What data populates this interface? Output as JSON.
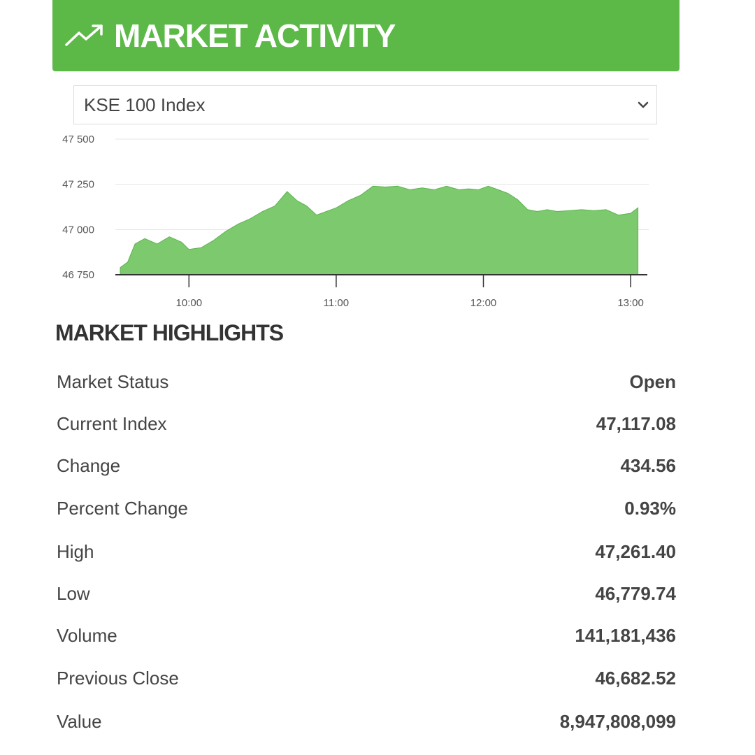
{
  "header": {
    "title": "MARKET ACTIVITY",
    "icon": "trending-up-icon",
    "accent": "#5cb947"
  },
  "index_selector": {
    "selected": "KSE 100 Index",
    "icon": "chevron-down-icon"
  },
  "chart_data": {
    "type": "area",
    "color": "#7cc96e",
    "y_ticks": [
      "47 500",
      "47 250",
      "47 000",
      "46 750"
    ],
    "x_ticks": [
      "10:00",
      "11:00",
      "12:00",
      "13:00"
    ],
    "ylim": [
      46750,
      47500
    ],
    "grid": true,
    "x": [
      "09:32",
      "09:35",
      "09:38",
      "09:42",
      "09:47",
      "09:52",
      "09:57",
      "10:00",
      "10:05",
      "10:10",
      "10:15",
      "10:20",
      "10:25",
      "10:30",
      "10:35",
      "10:40",
      "10:44",
      "10:48",
      "10:52",
      "10:56",
      "11:00",
      "11:05",
      "11:10",
      "11:15",
      "11:20",
      "11:25",
      "11:30",
      "11:35",
      "11:40",
      "11:45",
      "11:50",
      "11:54",
      "11:58",
      "12:02",
      "12:06",
      "12:10",
      "12:14",
      "12:18",
      "12:22",
      "12:26",
      "12:30",
      "12:35",
      "12:40",
      "12:45",
      "12:50",
      "12:55",
      "13:00",
      "13:03"
    ],
    "values": [
      46790,
      46820,
      46920,
      46950,
      46920,
      46960,
      46930,
      46890,
      46900,
      46940,
      46990,
      47030,
      47060,
      47100,
      47130,
      47210,
      47160,
      47130,
      47080,
      47100,
      47120,
      47160,
      47190,
      47240,
      47235,
      47240,
      47220,
      47230,
      47220,
      47240,
      47220,
      47225,
      47220,
      47240,
      47220,
      47200,
      47165,
      47110,
      47100,
      47110,
      47100,
      47105,
      47110,
      47105,
      47110,
      47080,
      47090,
      47120
    ]
  },
  "highlights": {
    "title": "MARKET HIGHLIGHTS",
    "rows": [
      {
        "label": "Market Status",
        "value": "Open"
      },
      {
        "label": "Current Index",
        "value": "47,117.08"
      },
      {
        "label": "Change",
        "value": "434.56"
      },
      {
        "label": "Percent Change",
        "value": "0.93%"
      },
      {
        "label": "High",
        "value": "47,261.40"
      },
      {
        "label": "Low",
        "value": "46,779.74"
      },
      {
        "label": "Volume",
        "value": "141,181,436"
      },
      {
        "label": "Previous Close",
        "value": "46,682.52"
      },
      {
        "label": "Value",
        "value": "8,947,808,099"
      }
    ]
  }
}
